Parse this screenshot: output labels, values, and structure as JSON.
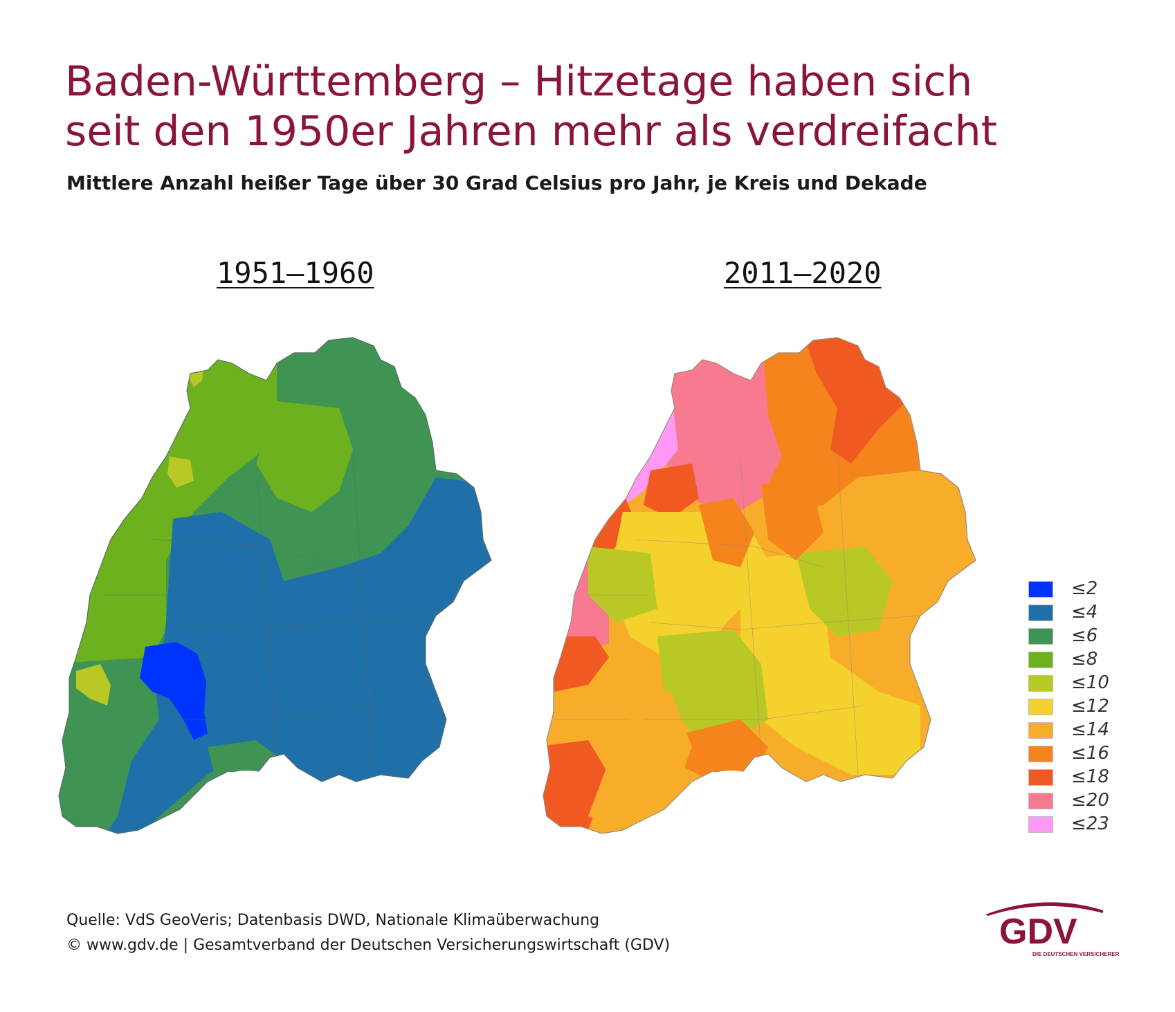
{
  "title": {
    "line1": "Baden-Württemberg – Hitzetage haben sich",
    "line2": "seit den 1950er Jahren mehr als verdreifacht"
  },
  "subtitle": "Mittlere Anzahl heißer Tage über 30 Grad Celsius pro Jahr, je Kreis und Dekade",
  "maps": [
    {
      "period": "1951–1960"
    },
    {
      "period": "2011–2020"
    }
  ],
  "legend": [
    {
      "label": "≤2",
      "color": "#0033ff"
    },
    {
      "label": "≤4",
      "color": "#1f6fa8"
    },
    {
      "label": "≤6",
      "color": "#3f9454"
    },
    {
      "label": "≤8",
      "color": "#6db21e"
    },
    {
      "label": "≤10",
      "color": "#b8c926"
    },
    {
      "label": "≤12",
      "color": "#f5d12e"
    },
    {
      "label": "≤14",
      "color": "#f8ad2a"
    },
    {
      "label": "≤16",
      "color": "#f5841c"
    },
    {
      "label": "≤18",
      "color": "#f05a22"
    },
    {
      "label": "≤20",
      "color": "#f77a90"
    },
    {
      "label": "≤23",
      "color": "#ff99f5"
    }
  ],
  "footer": {
    "source": "Quelle: VdS GeoVeris; Datenbasis DWD, Nationale Klimaüberwachung",
    "copyright": "© www.gdv.de | Gesamtverband der Deutschen Versicherungswirtschaft (GDV)"
  },
  "logo": {
    "text": "GDV",
    "tagline": "DIE DEUTSCHEN VERSICHERER",
    "color": "#8b1538"
  }
}
